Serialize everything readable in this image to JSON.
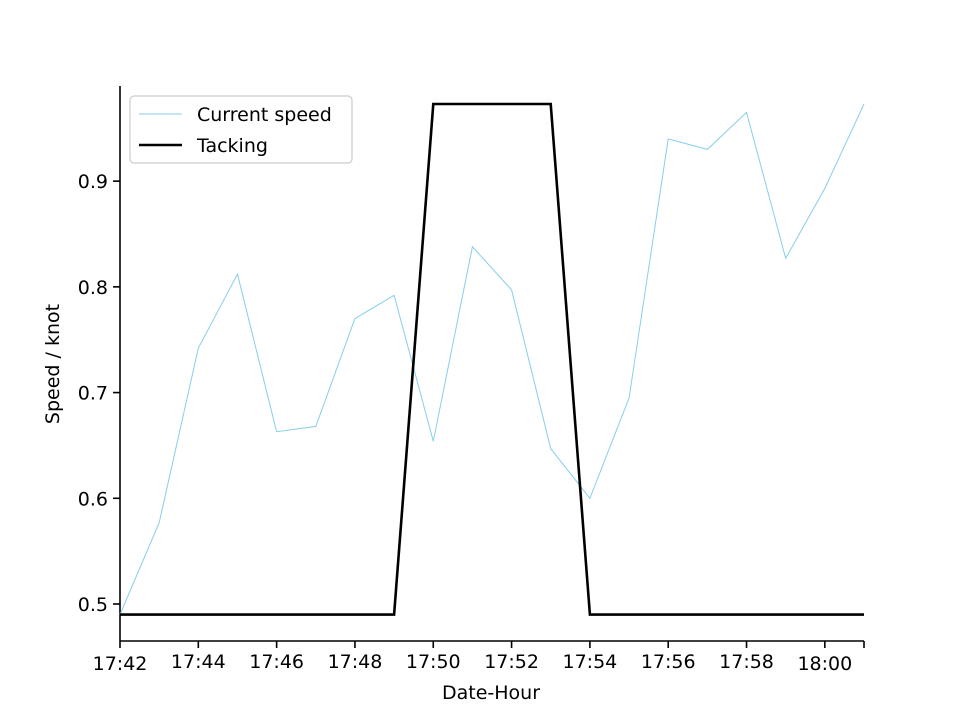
{
  "chart_data": {
    "type": "line",
    "xlabel": "Date-Hour",
    "ylabel": "Speed / knot",
    "x": [
      "17:42",
      "17:43",
      "17:44",
      "17:45",
      "17:46",
      "17:47",
      "17:48",
      "17:49",
      "17:50",
      "17:51",
      "17:52",
      "17:53",
      "17:54",
      "17:55",
      "17:56",
      "17:57",
      "17:58",
      "17:59",
      "18:00",
      "18:01"
    ],
    "x_tick_labels": [
      "17:42",
      "17:44",
      "17:46",
      "17:48",
      "17:50",
      "17:52",
      "17:54",
      "17:56",
      "17:58",
      "18:00"
    ],
    "y_tick_labels": [
      "0.5",
      "0.6",
      "0.7",
      "0.8",
      "0.9"
    ],
    "y_ticks": [
      0.5,
      0.6,
      0.7,
      0.8,
      0.9
    ],
    "ylim": [
      0.465,
      0.99
    ],
    "xlim": [
      "17:42",
      "18:01"
    ],
    "grid": false,
    "legend_position": "top-left",
    "series": [
      {
        "name": "Current speed",
        "color": "#87CEEB",
        "values": [
          0.49,
          0.577,
          0.742,
          0.812,
          0.663,
          0.668,
          0.77,
          0.792,
          0.654,
          0.838,
          0.797,
          0.647,
          0.6,
          0.695,
          0.94,
          0.93,
          0.965,
          0.827,
          0.893,
          0.973
        ]
      },
      {
        "name": "Tacking",
        "color": "#000000",
        "values": [
          0.49,
          0.49,
          0.49,
          0.49,
          0.49,
          0.49,
          0.49,
          0.49,
          0.973,
          0.973,
          0.973,
          0.973,
          0.49,
          0.49,
          0.49,
          0.49,
          0.49,
          0.49,
          0.49,
          0.49
        ]
      }
    ]
  }
}
